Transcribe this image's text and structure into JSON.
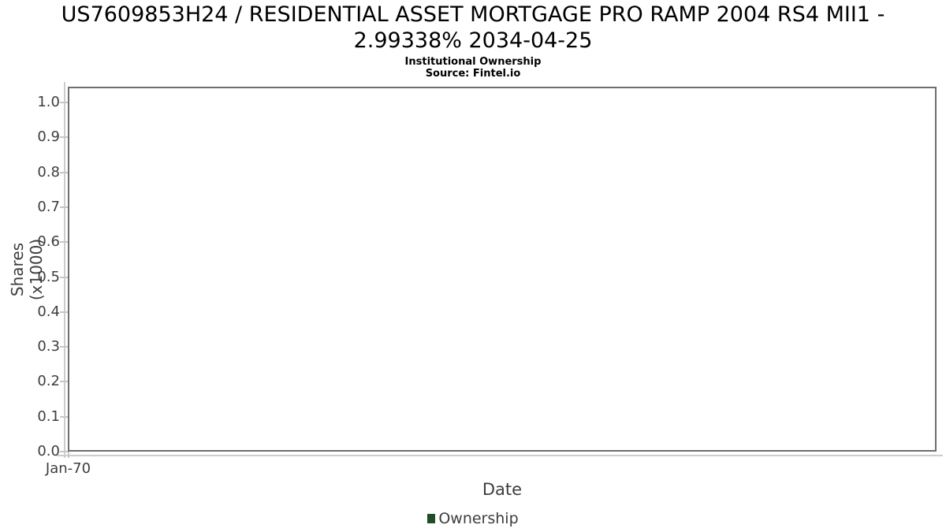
{
  "header": {
    "title_line1": "US7609853H24 / RESIDENTIAL ASSET MORTGAGE PRO RAMP 2004 RS4 MII1 -",
    "title_line2": "2.99338% 2034-04-25",
    "subtitle": "Institutional Ownership",
    "source": "Source: Fintel.io"
  },
  "chart_data": {
    "type": "line",
    "title": "US7609853H24 / RESIDENTIAL ASSET MORTGAGE PRO RAMP 2004 RS4 MII1 - 2.99338% 2034-04-25",
    "subtitle": "Institutional Ownership",
    "source": "Source: Fintel.io",
    "xlabel": "Date",
    "ylabel": "Shares (x1000)",
    "x_tick_labels": [
      "Jan-70"
    ],
    "y_ticks": [
      0.0,
      0.1,
      0.2,
      0.3,
      0.4,
      0.5,
      0.6,
      0.7,
      0.8,
      0.9,
      1.0
    ],
    "ylim": [
      0,
      1.05
    ],
    "grid": true,
    "legend_position": "bottom-center",
    "series": [
      {
        "name": "Ownership",
        "color": "#1e4d26",
        "x": [],
        "values": []
      }
    ]
  },
  "colors": {
    "plot_border": "#6e6e6e",
    "gridline": "#e3e3e3",
    "tick": "#c6c6c6",
    "axis_text": "#3d3d3d",
    "legend_swatch": "#1e4d26",
    "background": "#ffffff"
  }
}
